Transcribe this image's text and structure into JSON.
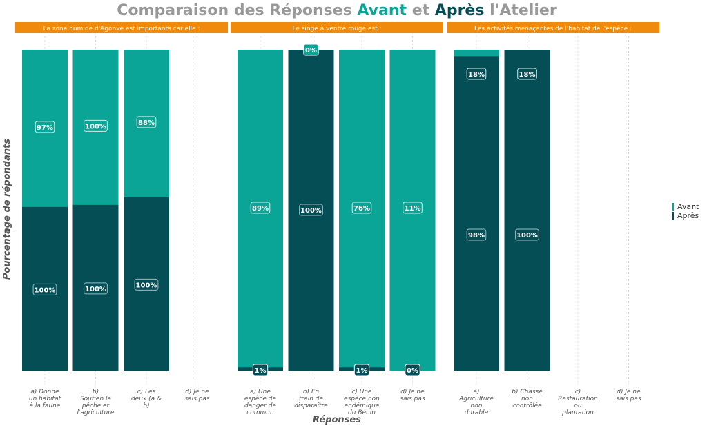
{
  "chart_data": {
    "type": "bar",
    "stacked": true,
    "title_parts": [
      {
        "text": "Comparaison des Réponses ",
        "color": "#999999"
      },
      {
        "text": "Avant",
        "color": "#0aa596"
      },
      {
        "text": " et ",
        "color": "#999999"
      },
      {
        "text": "Après",
        "color": "#064e55"
      },
      {
        "text": " l'Atelier",
        "color": "#999999"
      }
    ],
    "ylabel": "Pourcentage de répondants",
    "xlabel": "Réponses",
    "legend": {
      "position": "right",
      "entries": [
        {
          "name": "Avant",
          "color": "#0aa596"
        },
        {
          "name": "Après",
          "color": "#064e55"
        }
      ]
    },
    "colors": {
      "avant": "#0aa596",
      "apres": "#064e55",
      "header": "#f08a0c",
      "grid": "#dddddd"
    },
    "panels": [
      {
        "header": "La zone humide d'Agonve est importants car elle :",
        "categories": [
          {
            "label": [
              "a) Donne",
              "un habitat",
              "à la faune"
            ],
            "avant": 97,
            "apres": 100
          },
          {
            "label": [
              "b)",
              "Soutien la",
              "pêche et",
              "l'agriculture"
            ],
            "avant": 100,
            "apres": 100
          },
          {
            "label": [
              "c) Les",
              "deux (a &",
              "b)"
            ],
            "avant": 88,
            "apres": 100
          },
          {
            "label": [
              "d) Je ne",
              "sais pas"
            ],
            "avant": null,
            "apres": null
          }
        ]
      },
      {
        "header": "Le singe à ventre rouge est :",
        "categories": [
          {
            "label": [
              "a) Une",
              "espèce de",
              "danger de",
              "commun"
            ],
            "avant": 89,
            "apres": 1
          },
          {
            "label": [
              "b) En",
              "train de",
              "disparaître"
            ],
            "avant": 0,
            "apres": 100
          },
          {
            "label": [
              "c) Une",
              "espèce non",
              "endémique",
              "du Bénin"
            ],
            "avant": 76,
            "apres": 1
          },
          {
            "label": [
              "d) Je ne",
              "sais pas"
            ],
            "avant": 11,
            "apres": 0
          }
        ]
      },
      {
        "header": "Les activités menaçantes de l'habitat de l'espèce :",
        "categories": [
          {
            "label": [
              "a)",
              "Agriculture",
              "non",
              "durable"
            ],
            "avant": 18,
            "apres": 98
          },
          {
            "label": [
              "b) Chasse",
              "non",
              "contrôlée"
            ],
            "avant": 18,
            "apres": 100
          },
          {
            "label": [
              "c)",
              "Restauration",
              "ou",
              "plantation"
            ],
            "avant": null,
            "apres": null
          },
          {
            "label": [
              "d) Je ne",
              "sais pas"
            ],
            "avant": null,
            "apres": null
          }
        ]
      }
    ]
  }
}
